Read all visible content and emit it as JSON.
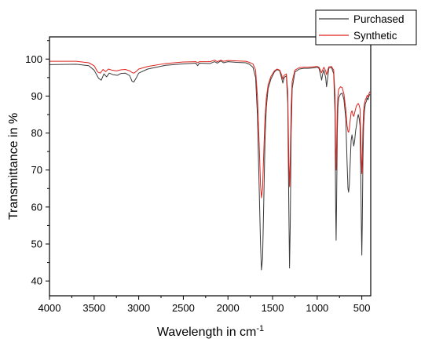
{
  "chart_data": {
    "type": "line",
    "title": "",
    "xlabel": "Wavelength in cm",
    "xlabel_superscript": "-1",
    "ylabel": "Transmittance in %",
    "xlim": [
      4000,
      400
    ],
    "ylim": [
      36,
      106
    ],
    "x_reversed": true,
    "x_ticks": [
      4000,
      3500,
      3000,
      2500,
      2000,
      1500,
      1000,
      500
    ],
    "y_ticks": [
      40,
      50,
      60,
      70,
      80,
      90,
      100
    ],
    "grid": false,
    "legend_position": "top-right",
    "series": [
      {
        "name": "Purchased",
        "color": "#3a3a3a",
        "points": [
          [
            4000,
            98.5
          ],
          [
            3700,
            98.6
          ],
          [
            3560,
            98.2
          ],
          [
            3500,
            97.0
          ],
          [
            3450,
            94.8
          ],
          [
            3420,
            94.3
          ],
          [
            3390,
            96.0
          ],
          [
            3360,
            95.2
          ],
          [
            3330,
            96.2
          ],
          [
            3290,
            95.8
          ],
          [
            3240,
            95.6
          ],
          [
            3200,
            96.1
          ],
          [
            3150,
            96.2
          ],
          [
            3100,
            95.5
          ],
          [
            3075,
            94.0
          ],
          [
            3055,
            93.8
          ],
          [
            3030,
            94.8
          ],
          [
            3000,
            96.2
          ],
          [
            2900,
            97.3
          ],
          [
            2700,
            98.3
          ],
          [
            2500,
            98.7
          ],
          [
            2360,
            98.9
          ],
          [
            2340,
            98.2
          ],
          [
            2320,
            98.9
          ],
          [
            2200,
            98.8
          ],
          [
            2150,
            99.3
          ],
          [
            2120,
            98.9
          ],
          [
            2080,
            99.5
          ],
          [
            2050,
            99.0
          ],
          [
            2000,
            99.3
          ],
          [
            1900,
            99.1
          ],
          [
            1800,
            99.0
          ],
          [
            1760,
            98.6
          ],
          [
            1720,
            97.8
          ],
          [
            1690,
            95.0
          ],
          [
            1670,
            85.0
          ],
          [
            1650,
            65.0
          ],
          [
            1635,
            50.0
          ],
          [
            1625,
            43.0
          ],
          [
            1612,
            46.0
          ],
          [
            1600,
            60.0
          ],
          [
            1585,
            78.0
          ],
          [
            1570,
            87.0
          ],
          [
            1550,
            92.0
          ],
          [
            1520,
            94.5
          ],
          [
            1480,
            96.5
          ],
          [
            1450,
            97.2
          ],
          [
            1420,
            96.8
          ],
          [
            1400,
            95.0
          ],
          [
            1385,
            93.5
          ],
          [
            1370,
            95.0
          ],
          [
            1345,
            95.5
          ],
          [
            1330,
            88.0
          ],
          [
            1318,
            60.0
          ],
          [
            1310,
            43.5
          ],
          [
            1302,
            55.0
          ],
          [
            1292,
            80.0
          ],
          [
            1280,
            92.0
          ],
          [
            1250,
            96.5
          ],
          [
            1200,
            97.3
          ],
          [
            1150,
            97.5
          ],
          [
            1100,
            97.5
          ],
          [
            1050,
            97.6
          ],
          [
            1000,
            97.8
          ],
          [
            980,
            97.5
          ],
          [
            960,
            95.5
          ],
          [
            950,
            94.3
          ],
          [
            940,
            95.8
          ],
          [
            925,
            97.0
          ],
          [
            905,
            95.0
          ],
          [
            895,
            92.5
          ],
          [
            885,
            94.5
          ],
          [
            870,
            97.5
          ],
          [
            840,
            97.8
          ],
          [
            815,
            96.0
          ],
          [
            800,
            85.0
          ],
          [
            793,
            60.0
          ],
          [
            788,
            51.0
          ],
          [
            783,
            60.0
          ],
          [
            775,
            80.0
          ],
          [
            768,
            87.0
          ],
          [
            760,
            89.5
          ],
          [
            740,
            90.5
          ],
          [
            720,
            90.8
          ],
          [
            700,
            89.0
          ],
          [
            680,
            84.0
          ],
          [
            665,
            72.0
          ],
          [
            655,
            65.0
          ],
          [
            648,
            64.0
          ],
          [
            640,
            66.0
          ],
          [
            630,
            72.0
          ],
          [
            620,
            78.0
          ],
          [
            610,
            79.5
          ],
          [
            600,
            78.0
          ],
          [
            590,
            76.5
          ],
          [
            580,
            78.0
          ],
          [
            570,
            80.5
          ],
          [
            560,
            82.0
          ],
          [
            548,
            84.0
          ],
          [
            540,
            85.0
          ],
          [
            530,
            84.0
          ],
          [
            520,
            82.0
          ],
          [
            512,
            70.0
          ],
          [
            505,
            55.0
          ],
          [
            500,
            47.0
          ],
          [
            495,
            55.0
          ],
          [
            488,
            72.0
          ],
          [
            480,
            82.0
          ],
          [
            470,
            86.0
          ],
          [
            460,
            88.0
          ],
          [
            450,
            88.5
          ],
          [
            440,
            89.5
          ],
          [
            430,
            89.0
          ],
          [
            420,
            90.0
          ],
          [
            410,
            90.5
          ]
        ]
      },
      {
        "name": "Synthetic",
        "color": "#e0201b",
        "points": [
          [
            4000,
            99.4
          ],
          [
            3700,
            99.4
          ],
          [
            3560,
            99.0
          ],
          [
            3500,
            98.2
          ],
          [
            3460,
            96.5
          ],
          [
            3430,
            96.2
          ],
          [
            3400,
            97.2
          ],
          [
            3370,
            96.6
          ],
          [
            3340,
            97.3
          ],
          [
            3300,
            97.0
          ],
          [
            3250,
            96.8
          ],
          [
            3200,
            97.1
          ],
          [
            3150,
            97.2
          ],
          [
            3100,
            96.8
          ],
          [
            3070,
            96.3
          ],
          [
            3055,
            96.2
          ],
          [
            3030,
            96.6
          ],
          [
            3000,
            97.3
          ],
          [
            2900,
            98.0
          ],
          [
            2700,
            98.8
          ],
          [
            2500,
            99.2
          ],
          [
            2360,
            99.3
          ],
          [
            2340,
            99.0
          ],
          [
            2320,
            99.3
          ],
          [
            2200,
            99.3
          ],
          [
            2150,
            99.7
          ],
          [
            2120,
            99.3
          ],
          [
            2080,
            99.7
          ],
          [
            2050,
            99.4
          ],
          [
            2000,
            99.6
          ],
          [
            1900,
            99.5
          ],
          [
            1800,
            99.4
          ],
          [
            1760,
            99.1
          ],
          [
            1720,
            98.7
          ],
          [
            1690,
            97.0
          ],
          [
            1670,
            90.0
          ],
          [
            1650,
            77.0
          ],
          [
            1635,
            66.0
          ],
          [
            1625,
            62.5
          ],
          [
            1612,
            65.0
          ],
          [
            1600,
            74.0
          ],
          [
            1585,
            84.0
          ],
          [
            1570,
            89.5
          ],
          [
            1550,
            93.0
          ],
          [
            1520,
            95.2
          ],
          [
            1480,
            96.8
          ],
          [
            1450,
            97.3
          ],
          [
            1420,
            97.0
          ],
          [
            1400,
            95.8
          ],
          [
            1385,
            94.6
          ],
          [
            1370,
            95.6
          ],
          [
            1345,
            96.0
          ],
          [
            1330,
            91.0
          ],
          [
            1318,
            73.0
          ],
          [
            1310,
            65.5
          ],
          [
            1302,
            72.0
          ],
          [
            1292,
            87.0
          ],
          [
            1280,
            94.0
          ],
          [
            1250,
            97.0
          ],
          [
            1200,
            97.7
          ],
          [
            1150,
            97.8
          ],
          [
            1100,
            97.8
          ],
          [
            1050,
            97.9
          ],
          [
            1000,
            98.0
          ],
          [
            980,
            97.8
          ],
          [
            960,
            96.8
          ],
          [
            950,
            96.3
          ],
          [
            940,
            97.0
          ],
          [
            925,
            97.8
          ],
          [
            905,
            96.8
          ],
          [
            895,
            95.8
          ],
          [
            885,
            96.6
          ],
          [
            870,
            97.9
          ],
          [
            840,
            98.0
          ],
          [
            815,
            97.0
          ],
          [
            800,
            90.0
          ],
          [
            793,
            76.0
          ],
          [
            788,
            70.0
          ],
          [
            783,
            76.0
          ],
          [
            775,
            86.0
          ],
          [
            768,
            90.0
          ],
          [
            760,
            91.8
          ],
          [
            740,
            92.5
          ],
          [
            720,
            92.3
          ],
          [
            700,
            90.5
          ],
          [
            680,
            86.5
          ],
          [
            665,
            82.0
          ],
          [
            655,
            80.5
          ],
          [
            648,
            80.2
          ],
          [
            640,
            81.0
          ],
          [
            630,
            83.5
          ],
          [
            620,
            85.5
          ],
          [
            610,
            86.0
          ],
          [
            600,
            85.0
          ],
          [
            590,
            84.5
          ],
          [
            580,
            85.5
          ],
          [
            570,
            86.5
          ],
          [
            560,
            87.3
          ],
          [
            548,
            87.8
          ],
          [
            540,
            88.0
          ],
          [
            530,
            87.5
          ],
          [
            520,
            86.5
          ],
          [
            512,
            79.0
          ],
          [
            505,
            72.0
          ],
          [
            500,
            69.0
          ],
          [
            495,
            73.0
          ],
          [
            488,
            81.0
          ],
          [
            480,
            86.0
          ],
          [
            470,
            88.0
          ],
          [
            460,
            89.0
          ],
          [
            450,
            89.5
          ],
          [
            440,
            90.2
          ],
          [
            430,
            89.8
          ],
          [
            420,
            90.6
          ],
          [
            410,
            91.2
          ]
        ]
      }
    ]
  }
}
